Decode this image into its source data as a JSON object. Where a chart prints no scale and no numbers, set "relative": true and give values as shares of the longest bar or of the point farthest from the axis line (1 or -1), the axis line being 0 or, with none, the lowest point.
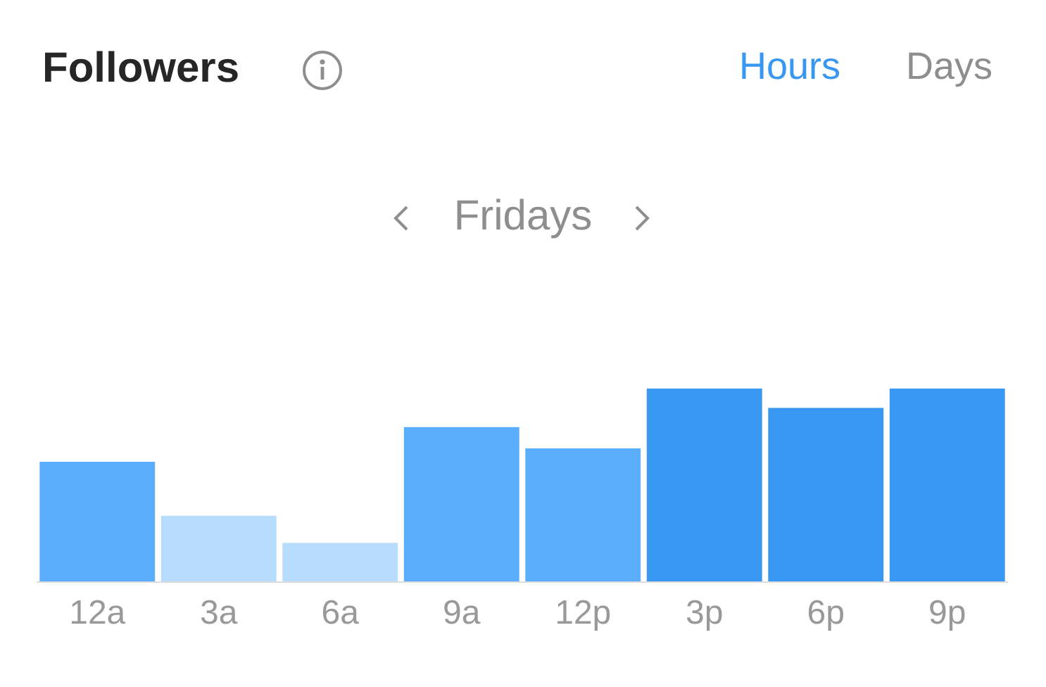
{
  "chart_data": {
    "type": "bar",
    "title": "Followers",
    "subtitle": "Fridays",
    "annotations": [
      "Hours",
      "Days"
    ],
    "categories": [
      "12a",
      "3a",
      "6a",
      "9a",
      "12p",
      "3p",
      "6p",
      "9p"
    ],
    "values": [
      0.62,
      0.34,
      0.2,
      0.8,
      0.69,
      1,
      0.9,
      1
    ],
    "colors": [
      "#5aaefc",
      "#b8dcfd",
      "#b8dcfd",
      "#5aaefc",
      "#5aaefc",
      "#3897f0",
      "#3897f0",
      "#3897f0"
    ],
    "relative": true
  }
}
